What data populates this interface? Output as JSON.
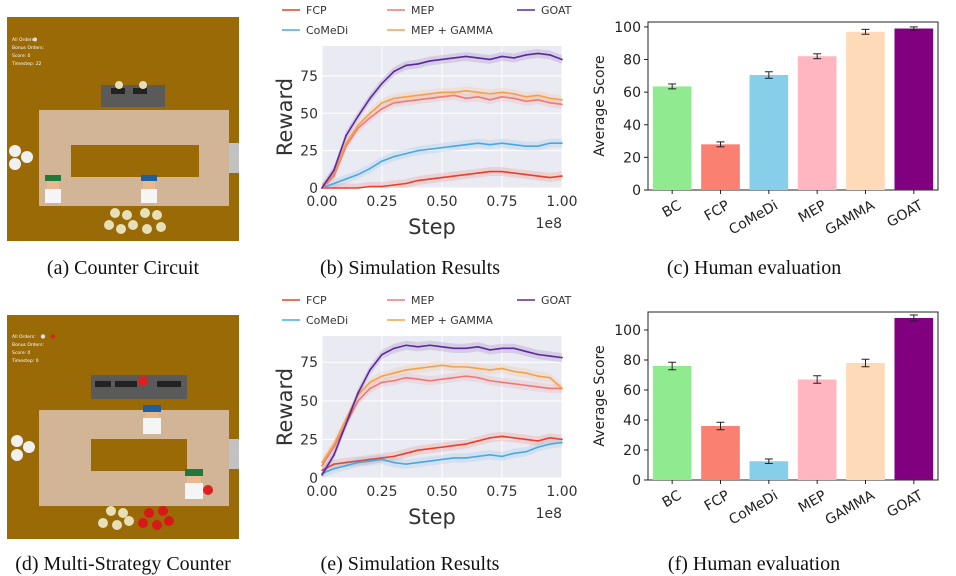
{
  "colors": {
    "FCP": "#e8402a",
    "CoMeDi": "#4aa8e0",
    "MEP": "#f07878",
    "MEP + GAMMA": "#f5a04a",
    "GOAT": "#5b2a9a",
    "bar_BC": "#90ea8f",
    "bar_FCP": "#fa8072",
    "bar_CoMeDi": "#87ceea",
    "bar_MEP": "#ffb6c1",
    "bar_GAMMA": "#ffdab8",
    "bar_GOAT": "#800080",
    "game_bg": "#9a6a06",
    "counter": "#d2b597",
    "plot_bg": "#eaeaf2"
  },
  "captions": {
    "a": "(a) Counter Circuit",
    "b": "(b) Simulation Results",
    "c": "(c) Human evaluation",
    "d": "(d) Multi-Strategy Counter",
    "e": "(e) Simulation Results",
    "f": "(f) Human evaluation"
  },
  "game_a": {
    "hud": [
      "All Orders:",
      "Bonus Orders:",
      "Score: 0",
      "Timestep: 22"
    ]
  },
  "game_d": {
    "hud": [
      "All Orders:",
      "Bonus Orders:",
      "Score: 0",
      "Timestep: 0"
    ]
  },
  "chart_data": [
    {
      "id": "b",
      "type": "line",
      "xlabel": "Step",
      "ylabel": "Reward",
      "x_scale_label": "1e8",
      "xlim": [
        0,
        1.0
      ],
      "ylim": [
        0,
        95
      ],
      "xticks": [
        "0.00",
        "0.25",
        "0.50",
        "0.75",
        "1.00"
      ],
      "yticks": [
        "0",
        "25",
        "50",
        "75"
      ],
      "ytick_values": [
        0,
        25,
        50,
        75
      ],
      "legend": [
        "FCP",
        "MEP",
        "GOAT",
        "CoMeDi",
        "MEP + GAMMA"
      ],
      "x": [
        0.0,
        0.05,
        0.1,
        0.15,
        0.2,
        0.25,
        0.3,
        0.35,
        0.4,
        0.45,
        0.5,
        0.55,
        0.6,
        0.65,
        0.7,
        0.75,
        0.8,
        0.85,
        0.9,
        0.95,
        1.0
      ],
      "series": [
        {
          "name": "FCP",
          "values": [
            0,
            0,
            0,
            0,
            1,
            1,
            2,
            3,
            5,
            6,
            7,
            8,
            9,
            10,
            11,
            11,
            10,
            9,
            8,
            7,
            8
          ]
        },
        {
          "name": "CoMeDi",
          "values": [
            0,
            3,
            6,
            9,
            13,
            18,
            21,
            23,
            25,
            26,
            27,
            28,
            29,
            30,
            29,
            30,
            29,
            28,
            28,
            30,
            30
          ]
        },
        {
          "name": "MEP",
          "values": [
            0,
            8,
            28,
            40,
            47,
            53,
            57,
            58,
            59,
            60,
            61,
            62,
            60,
            61,
            59,
            61,
            60,
            58,
            59,
            57,
            56
          ]
        },
        {
          "name": "MEP + GAMMA",
          "values": [
            0,
            10,
            30,
            42,
            50,
            57,
            60,
            61,
            62,
            63,
            64,
            64,
            65,
            64,
            63,
            64,
            63,
            61,
            62,
            60,
            59
          ]
        },
        {
          "name": "GOAT",
          "values": [
            0,
            12,
            35,
            48,
            60,
            70,
            78,
            82,
            83,
            85,
            86,
            87,
            88,
            87,
            86,
            88,
            87,
            89,
            90,
            89,
            86
          ]
        }
      ]
    },
    {
      "id": "c",
      "type": "bar",
      "ylabel": "Average Score",
      "ylim": [
        0,
        103
      ],
      "yticks": [
        "0",
        "20",
        "40",
        "60",
        "80",
        "100"
      ],
      "ytick_values": [
        0,
        20,
        40,
        60,
        80,
        100
      ],
      "categories": [
        "BC",
        "FCP",
        "CoMeDi",
        "MEP",
        "GAMMA",
        "GOAT"
      ],
      "values": [
        63.5,
        28,
        70.5,
        82,
        97,
        99
      ],
      "errors": [
        1.5,
        1.5,
        2,
        1.5,
        1.5,
        1
      ]
    },
    {
      "id": "e",
      "type": "line",
      "xlabel": "Step",
      "ylabel": "Reward",
      "x_scale_label": "1e8",
      "xlim": [
        0,
        1.0
      ],
      "ylim": [
        0,
        92
      ],
      "xticks": [
        "0.00",
        "0.25",
        "0.50",
        "0.75",
        "1.00"
      ],
      "yticks": [
        "0",
        "25",
        "50",
        "75"
      ],
      "ytick_values": [
        0,
        25,
        50,
        75
      ],
      "legend": [
        "FCP",
        "MEP",
        "GOAT",
        "CoMeDi",
        "MEP + GAMMA"
      ],
      "x": [
        0.0,
        0.05,
        0.1,
        0.15,
        0.2,
        0.25,
        0.3,
        0.35,
        0.4,
        0.45,
        0.5,
        0.55,
        0.6,
        0.65,
        0.7,
        0.75,
        0.8,
        0.85,
        0.9,
        0.95,
        1.0
      ],
      "series": [
        {
          "name": "FCP",
          "values": [
            5,
            9,
            10,
            11,
            12,
            13,
            14,
            16,
            18,
            19,
            20,
            21,
            22,
            24,
            26,
            27,
            26,
            25,
            24,
            26,
            25
          ]
        },
        {
          "name": "CoMeDi",
          "values": [
            3,
            6,
            8,
            10,
            11,
            12,
            10,
            9,
            10,
            11,
            12,
            13,
            13,
            14,
            15,
            14,
            16,
            17,
            20,
            22,
            23
          ]
        },
        {
          "name": "MEP",
          "values": [
            8,
            20,
            35,
            50,
            58,
            62,
            63,
            65,
            64,
            63,
            64,
            65,
            66,
            65,
            63,
            62,
            61,
            60,
            59,
            58,
            58
          ]
        },
        {
          "name": "MEP + GAMMA",
          "values": [
            10,
            22,
            38,
            54,
            62,
            66,
            68,
            70,
            71,
            72,
            73,
            72,
            72,
            71,
            70,
            71,
            69,
            68,
            66,
            65,
            58
          ]
        },
        {
          "name": "GOAT",
          "values": [
            2,
            15,
            35,
            55,
            70,
            80,
            84,
            86,
            85,
            86,
            85,
            84,
            84,
            85,
            83,
            84,
            84,
            82,
            80,
            79,
            78
          ]
        }
      ]
    },
    {
      "id": "f",
      "type": "bar",
      "ylabel": "Average Score",
      "ylim": [
        0,
        112
      ],
      "yticks": [
        "0",
        "20",
        "40",
        "60",
        "80",
        "100"
      ],
      "ytick_values": [
        0,
        20,
        40,
        60,
        80,
        100
      ],
      "categories": [
        "BC",
        "FCP",
        "CoMeDi",
        "MEP",
        "GAMMA",
        "GOAT"
      ],
      "values": [
        76,
        36,
        12.5,
        67,
        78,
        108
      ],
      "errors": [
        2.5,
        2.5,
        1.5,
        2.5,
        2.5,
        2
      ]
    }
  ]
}
